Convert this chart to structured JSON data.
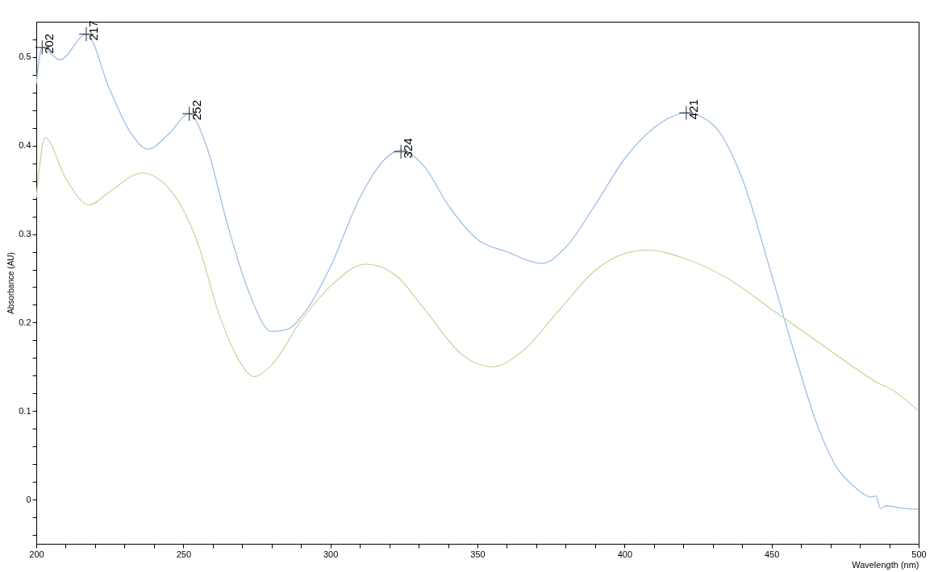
{
  "chart_data": {
    "type": "line",
    "xlabel": "Wavelength (nm)",
    "ylabel": "Absorbance (AU)",
    "xlim": [
      200,
      500
    ],
    "ylim": [
      -0.05,
      0.54
    ],
    "xticks": [
      200,
      {
        "value": 210,
        "label": null
      },
      {
        "value": 220,
        "label": null
      },
      {
        "value": 230,
        "label": null
      },
      {
        "value": 240,
        "label": null
      },
      250,
      {
        "value": 260,
        "label": null
      },
      {
        "value": 270,
        "label": null
      },
      {
        "value": 280,
        "label": null
      },
      {
        "value": 290,
        "label": null
      },
      300,
      {
        "value": 310,
        "label": null
      },
      {
        "value": 320,
        "label": null
      },
      {
        "value": 330,
        "label": null
      },
      {
        "value": 340,
        "label": null
      },
      350,
      {
        "value": 360,
        "label": null
      },
      {
        "value": 370,
        "label": null
      },
      {
        "value": 380,
        "label": null
      },
      {
        "value": 390,
        "label": null
      },
      400,
      {
        "value": 410,
        "label": null
      },
      {
        "value": 420,
        "label": null
      },
      {
        "value": 430,
        "label": null
      },
      {
        "value": 440,
        "label": null
      },
      450,
      {
        "value": 460,
        "label": null
      },
      {
        "value": 470,
        "label": null
      },
      {
        "value": 480,
        "label": null
      },
      {
        "value": 490,
        "label": null
      },
      500
    ],
    "yticks": [
      {
        "value": -0.04,
        "label": null
      },
      {
        "value": -0.02,
        "label": null
      },
      0,
      {
        "value": 0.02,
        "label": null
      },
      {
        "value": 0.04,
        "label": null
      },
      {
        "value": 0.06,
        "label": null
      },
      {
        "value": 0.08,
        "label": null
      },
      0.1,
      {
        "value": 0.12,
        "label": null
      },
      {
        "value": 0.14,
        "label": null
      },
      {
        "value": 0.16,
        "label": null
      },
      {
        "value": 0.18,
        "label": null
      },
      0.2,
      {
        "value": 0.22,
        "label": null
      },
      {
        "value": 0.24,
        "label": null
      },
      {
        "value": 0.26,
        "label": null
      },
      {
        "value": 0.28,
        "label": null
      },
      0.3,
      {
        "value": 0.32,
        "label": null
      },
      {
        "value": 0.34,
        "label": null
      },
      {
        "value": 0.36,
        "label": null
      },
      {
        "value": 0.38,
        "label": null
      },
      0.4,
      {
        "value": 0.42,
        "label": null
      },
      {
        "value": 0.44,
        "label": null
      },
      {
        "value": 0.46,
        "label": null
      },
      {
        "value": 0.48,
        "label": null
      },
      0.5,
      {
        "value": 0.52,
        "label": null
      }
    ],
    "grid": false,
    "marker": "none",
    "line_style": "solid",
    "series": [
      {
        "color": "#9dbfe8",
        "x": [
          200,
          202,
          208,
          217,
          225,
          232,
          238,
          245,
          252,
          258,
          265,
          272,
          280,
          285,
          292,
          300,
          310,
          318,
          324,
          332,
          340,
          350,
          360,
          372,
          380,
          390,
          400,
          410,
          421,
          430,
          440,
          450,
          458,
          465,
          472,
          478,
          484,
          485.5,
          487,
          489,
          495,
          500
        ],
        "values": [
          0.47,
          0.511,
          0.497,
          0.526,
          0.463,
          0.415,
          0.396,
          0.413,
          0.436,
          0.398,
          0.311,
          0.237,
          0.19,
          0.192,
          0.215,
          0.263,
          0.341,
          0.383,
          0.395,
          0.376,
          0.333,
          0.294,
          0.28,
          0.267,
          0.285,
          0.333,
          0.385,
          0.42,
          0.437,
          0.424,
          0.363,
          0.254,
          0.163,
          0.089,
          0.037,
          0.015,
          0.003,
          0.004,
          -0.01,
          -0.007,
          -0.01,
          -0.011
        ]
      },
      {
        "color": "#cdd79f",
        "x": [
          200,
          203,
          210,
          218,
          225,
          236,
          245,
          255,
          262,
          268,
          274,
          280,
          290,
          300,
          312,
          322,
          332,
          345,
          355,
          365,
          378,
          390,
          400,
          408,
          420,
          435,
          450,
          465,
          480,
          486,
          490,
          500
        ],
        "values": [
          0.341,
          0.409,
          0.363,
          0.333,
          0.348,
          0.369,
          0.352,
          0.289,
          0.211,
          0.163,
          0.139,
          0.152,
          0.202,
          0.241,
          0.266,
          0.254,
          0.215,
          0.163,
          0.15,
          0.167,
          0.215,
          0.259,
          0.278,
          0.282,
          0.273,
          0.25,
          0.215,
          0.18,
          0.145,
          0.132,
          0.126,
          0.1
        ]
      }
    ],
    "annotations": [
      {
        "text": "202",
        "x": 202,
        "y": 0.511
      },
      {
        "text": "217",
        "x": 217,
        "y": 0.526
      },
      {
        "text": "252",
        "x": 252,
        "y": 0.436
      },
      {
        "text": "324",
        "x": 324,
        "y": 0.393
      },
      {
        "text": "421",
        "x": 421,
        "y": 0.437
      }
    ]
  }
}
